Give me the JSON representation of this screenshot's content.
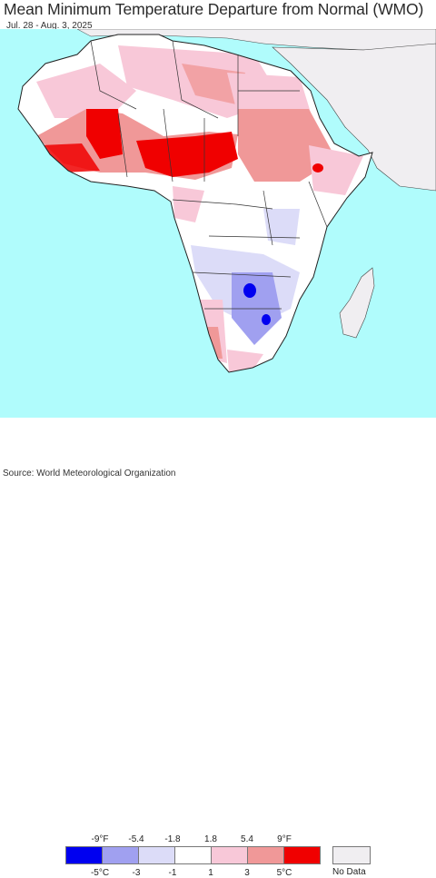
{
  "header": {
    "title": "Mean Minimum Temperature Departure from Normal (WMO)",
    "date_range": "Jul. 28 - Aug. 3, 2025"
  },
  "legend": {
    "fahrenheit_ticks": [
      "-9°F",
      "-5.4",
      "-1.8",
      "1.8",
      "5.4",
      "9°F"
    ],
    "celsius_ticks": [
      "-5°C",
      "-3",
      "-1",
      "1",
      "3",
      "5°C"
    ],
    "bins": [
      {
        "color": "#0000f0"
      },
      {
        "color": "#a0a0f0"
      },
      {
        "color": "#dcdcf8"
      },
      {
        "color": "#ffffff"
      },
      {
        "color": "#f8c8d8"
      },
      {
        "color": "#f09898"
      },
      {
        "color": "#f00000"
      }
    ],
    "no_data_label": "No Data",
    "no_data_color": "#f0eef1"
  },
  "colors": {
    "ocean": "#b0fcfc",
    "no_data_land": "#f0eef1",
    "border": "#333333"
  },
  "footer": {
    "source": "Source: World Meteorological Organization"
  }
}
